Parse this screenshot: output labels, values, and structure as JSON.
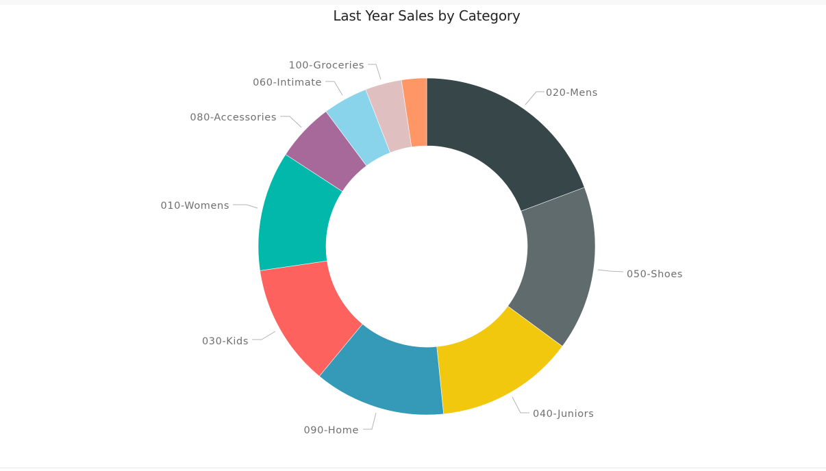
{
  "chart_data": {
    "type": "pie",
    "variant": "donut",
    "title": "Last Year Sales by Category",
    "center": [
      623,
      360
    ],
    "outer_radius": 246,
    "inner_radius": 147,
    "start_angle_deg": 0,
    "legend": "none",
    "slices": [
      {
        "label": "020-Mens",
        "share_pct": 19.3,
        "color": "#374649",
        "label_pos": [
          797,
          140
        ],
        "anchor": "start",
        "leader": [
          [
            767,
            153
          ],
          [
            783,
            134
          ],
          [
            795,
            134
          ]
        ]
      },
      {
        "label": "050-Shoes",
        "share_pct": 15.8,
        "color": "#5f6b6d",
        "label_pos": [
          915,
          405
        ],
        "anchor": "start",
        "leader": [
          [
            873,
            394
          ],
          [
            890,
            396
          ],
          [
            910,
            397
          ]
        ]
      },
      {
        "label": "040-Juniors",
        "share_pct": 13.3,
        "color": "#f2c80f",
        "label_pos": [
          778,
          609
        ],
        "anchor": "start",
        "leader": [
          [
            748,
            580
          ],
          [
            760,
            603
          ],
          [
            773,
            603
          ]
        ]
      },
      {
        "label": "090-Home",
        "share_pct": 12.6,
        "color": "#3599b8",
        "label_pos": [
          524,
          633
        ],
        "anchor": "end",
        "leader": [
          [
            549,
            603
          ],
          [
            543,
            627
          ],
          [
            530,
            627
          ]
        ]
      },
      {
        "label": "030-Kids",
        "share_pct": 11.7,
        "color": "#fd625e",
        "label_pos": [
          363,
          503
        ],
        "anchor": "end",
        "leader": [
          [
            402,
            484
          ],
          [
            382,
            496
          ],
          [
            368,
            496
          ]
        ]
      },
      {
        "label": "010-Womens",
        "share_pct": 11.5,
        "color": "#01b8aa",
        "label_pos": [
          335,
          305
        ],
        "anchor": "end",
        "leader": [
          [
            376,
            304
          ],
          [
            360,
            299
          ],
          [
            340,
            299
          ]
        ]
      },
      {
        "label": "080-Accessories",
        "share_pct": 5.6,
        "color": "#a66999",
        "label_pos": [
          404,
          176
        ],
        "anchor": "end",
        "leader": [
          [
            440,
            186
          ],
          [
            423,
            170
          ],
          [
            409,
            170
          ]
        ]
      },
      {
        "label": "060-Intimate",
        "share_pct": 4.3,
        "color": "#8ad4eb",
        "label_pos": [
          470,
          125
        ],
        "anchor": "end",
        "leader": [
          [
            500,
            139
          ],
          [
            488,
            119
          ],
          [
            475,
            119
          ]
        ]
      },
      {
        "label": "100-Groceries",
        "share_pct": 3.5,
        "color": "#dfbfbf",
        "label_pos": [
          532,
          100
        ],
        "anchor": "end",
        "leader": [
          [
            556,
            116
          ],
          [
            549,
            94
          ],
          [
            537,
            94
          ]
        ]
      },
      {
        "label": "",
        "share_pct": 2.4,
        "color": "#fe9666",
        "label_pos": null,
        "anchor": null,
        "leader": null
      }
    ]
  }
}
